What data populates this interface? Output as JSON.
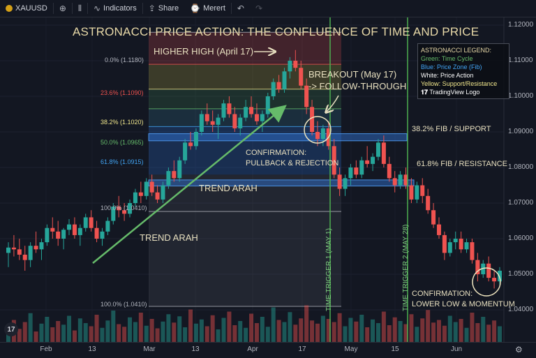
{
  "toolbar": {
    "symbol": "XAUUSD",
    "add_icon": "plus-circle-icon",
    "compare_icon": "candles-icon",
    "indicators_label": "Indicators",
    "share_label": "Share",
    "alert_label": "Merert",
    "undo_icon": "undo-icon",
    "redo_icon": "redo-icon"
  },
  "chart_data": {
    "type": "candlestick",
    "title": "ASTRONACCI PRICE ACTION: THE CONFLUENCE OF TIME AND PRICE",
    "y_ticks": [
      "1.12000",
      "1.11000",
      "1.10000",
      "1.09000",
      "1.08000",
      "1.07000",
      "1.06000",
      "1.05000",
      "1.04000"
    ],
    "ylim": [
      1.0355,
      1.1205
    ],
    "x_ticks": [
      "Feb",
      "13",
      "Mar",
      "13",
      "Apr",
      "17",
      "May",
      "15",
      "Jun"
    ],
    "fib_levels": [
      {
        "label": "0.0% (1.1180)",
        "value": 1.118,
        "color": "#b2b5be"
      },
      {
        "label": "23.6% (1.1090)",
        "value": 1.109,
        "color": "#ef5350"
      },
      {
        "label": "38.2% (1.1020)",
        "value": 1.102,
        "color": "#f0e68c"
      },
      {
        "label": "50.0% (1.0965)",
        "value": 1.0965,
        "color": "#66bb6a"
      },
      {
        "label": "61.8% (1.0915)",
        "value": 1.0915,
        "color": "#42a5f5"
      },
      {
        "label": "100.0% (1.0410)",
        "value": 1.041,
        "color": "#b2b5be"
      },
      {
        "label": "100.0% (1.0410)",
        "value": 1.041,
        "color": "#b2b5be"
      }
    ],
    "annotations": {
      "higher_high": "HIGHER HIGH (April 17)",
      "breakout_1": "BREAKOUT (May 17)",
      "breakout_2": "-> FOLLOW-THROUGH",
      "confirmation_1a": "CONFIRMATION:",
      "confirmation_1b": "PULLBACK & REJECTION",
      "fib_support": "38.2% FIB / SUPPORT",
      "fib_resistance": "61.8% FIB / RESISTANCE",
      "trend_1": "TREND ARAH",
      "trend_2": "TREND ARAH",
      "time_trigger_1": "TIME TRIGGER 1 (MAY 1)",
      "time_trigger_2": "TIME TRIGGER 2 (MAY 28)",
      "confirmation_2a": "CONFIRMATION:",
      "confirmation_2b": "LOWER LOW & MOMENTUM"
    },
    "legend": {
      "title": "ASTRONACCI LEGEND:",
      "green": "Green: Time Cycle",
      "blue": "Blue: Price Zone (Fib)",
      "white": "White: Price Action",
      "yellow": "Yellow: Support/Resistance",
      "logo": "TradingView Logo"
    },
    "colors": {
      "up": "#26a69a",
      "down": "#ef5350",
      "time": "#4caf50",
      "trend": "#66bb6a"
    },
    "candles": [
      [
        1.056,
        1.059,
        1.052,
        1.0575
      ],
      [
        1.0575,
        1.061,
        1.055,
        1.057
      ],
      [
        1.057,
        1.06,
        1.054,
        1.0555
      ],
      [
        1.0555,
        1.058,
        1.051,
        1.054
      ],
      [
        1.054,
        1.059,
        1.052,
        1.058
      ],
      [
        1.058,
        1.062,
        1.056,
        1.057
      ],
      [
        1.057,
        1.06,
        1.054,
        1.059
      ],
      [
        1.059,
        1.064,
        1.058,
        1.063
      ],
      [
        1.063,
        1.066,
        1.06,
        1.062
      ],
      [
        1.062,
        1.065,
        1.058,
        1.06
      ],
      [
        1.06,
        1.063,
        1.057,
        1.0625
      ],
      [
        1.0625,
        1.0655,
        1.061,
        1.064
      ],
      [
        1.064,
        1.066,
        1.06,
        1.061
      ],
      [
        1.061,
        1.064,
        1.058,
        1.063
      ],
      [
        1.063,
        1.067,
        1.062,
        1.066
      ],
      [
        1.066,
        1.068,
        1.062,
        1.063
      ],
      [
        1.063,
        1.065,
        1.059,
        1.06
      ],
      [
        1.06,
        1.063,
        1.058,
        1.062
      ],
      [
        1.062,
        1.066,
        1.061,
        1.065
      ],
      [
        1.065,
        1.07,
        1.064,
        1.069
      ],
      [
        1.069,
        1.072,
        1.066,
        1.068
      ],
      [
        1.068,
        1.07,
        1.065,
        1.067
      ],
      [
        1.067,
        1.071,
        1.066,
        1.07
      ],
      [
        1.07,
        1.074,
        1.069,
        1.073
      ],
      [
        1.073,
        1.076,
        1.07,
        1.072
      ],
      [
        1.072,
        1.077,
        1.071,
        1.076
      ],
      [
        1.076,
        1.078,
        1.072,
        1.073
      ],
      [
        1.073,
        1.075,
        1.07,
        1.071
      ],
      [
        1.071,
        1.076,
        1.07,
        1.075
      ],
      [
        1.075,
        1.08,
        1.074,
        1.079
      ],
      [
        1.079,
        1.082,
        1.076,
        1.077
      ],
      [
        1.077,
        1.083,
        1.076,
        1.082
      ],
      [
        1.082,
        1.088,
        1.081,
        1.087
      ],
      [
        1.087,
        1.09,
        1.085,
        1.086
      ],
      [
        1.086,
        1.091,
        1.085,
        1.09
      ],
      [
        1.09,
        1.096,
        1.089,
        1.095
      ],
      [
        1.095,
        1.098,
        1.092,
        1.093
      ],
      [
        1.093,
        1.096,
        1.09,
        1.092
      ],
      [
        1.092,
        1.095,
        1.088,
        1.094
      ],
      [
        1.094,
        1.099,
        1.093,
        1.098
      ],
      [
        1.098,
        1.1,
        1.094,
        1.095
      ],
      [
        1.095,
        1.097,
        1.09,
        1.091
      ],
      [
        1.091,
        1.095,
        1.089,
        1.094
      ],
      [
        1.094,
        1.099,
        1.093,
        1.097
      ],
      [
        1.097,
        1.1,
        1.094,
        1.095
      ],
      [
        1.095,
        1.098,
        1.092,
        1.093
      ],
      [
        1.093,
        1.096,
        1.09,
        1.095
      ],
      [
        1.095,
        1.101,
        1.094,
        1.1
      ],
      [
        1.1,
        1.105,
        1.099,
        1.104
      ],
      [
        1.104,
        1.106,
        1.101,
        1.102
      ],
      [
        1.102,
        1.108,
        1.101,
        1.107
      ],
      [
        1.107,
        1.111,
        1.105,
        1.11
      ],
      [
        1.11,
        1.113,
        1.107,
        1.108
      ],
      [
        1.108,
        1.11,
        1.102,
        1.103
      ],
      [
        1.103,
        1.105,
        1.095,
        1.097
      ],
      [
        1.097,
        1.099,
        1.089,
        1.09
      ],
      [
        1.09,
        1.093,
        1.086,
        1.088
      ],
      [
        1.088,
        1.092,
        1.086,
        1.091
      ],
      [
        1.091,
        1.093,
        1.085,
        1.086
      ],
      [
        1.086,
        1.088,
        1.077,
        1.078
      ],
      [
        1.078,
        1.08,
        1.072,
        1.074
      ],
      [
        1.074,
        1.078,
        1.072,
        1.077
      ],
      [
        1.077,
        1.081,
        1.075,
        1.08
      ],
      [
        1.08,
        1.082,
        1.077,
        1.078
      ],
      [
        1.078,
        1.083,
        1.077,
        1.082
      ],
      [
        1.082,
        1.086,
        1.08,
        1.081
      ],
      [
        1.081,
        1.084,
        1.079,
        1.083
      ],
      [
        1.083,
        1.088,
        1.082,
        1.087
      ],
      [
        1.087,
        1.089,
        1.08,
        1.081
      ],
      [
        1.081,
        1.083,
        1.076,
        1.077
      ],
      [
        1.077,
        1.079,
        1.073,
        1.075
      ],
      [
        1.075,
        1.079,
        1.074,
        1.078
      ],
      [
        1.078,
        1.08,
        1.074,
        1.075
      ],
      [
        1.075,
        1.077,
        1.07,
        1.071
      ],
      [
        1.071,
        1.076,
        1.07,
        1.075
      ],
      [
        1.075,
        1.077,
        1.07,
        1.072
      ],
      [
        1.072,
        1.074,
        1.067,
        1.068
      ],
      [
        1.068,
        1.07,
        1.063,
        1.064
      ],
      [
        1.064,
        1.066,
        1.06,
        1.061
      ],
      [
        1.061,
        1.062,
        1.054,
        1.056
      ],
      [
        1.056,
        1.06,
        1.055,
        1.059
      ],
      [
        1.059,
        1.062,
        1.057,
        1.06
      ],
      [
        1.06,
        1.062,
        1.056,
        1.057
      ],
      [
        1.057,
        1.06,
        1.056,
        1.059
      ],
      [
        1.059,
        1.06,
        1.053,
        1.054
      ],
      [
        1.054,
        1.056,
        1.048,
        1.05
      ],
      [
        1.05,
        1.054,
        1.049,
        1.053
      ],
      [
        1.053,
        1.055,
        1.048,
        1.049
      ],
      [
        1.049,
        1.051,
        1.046,
        1.048
      ],
      [
        1.048,
        1.052,
        1.047,
        1.051
      ]
    ],
    "volume": [
      30,
      42,
      25,
      38,
      55,
      20,
      35,
      48,
      28,
      40,
      33,
      50,
      22,
      45,
      36,
      30,
      52,
      27,
      41,
      60,
      34,
      29,
      47,
      38,
      56,
      31,
      44,
      26,
      39,
      53,
      37,
      49,
      28,
      62,
      35,
      43,
      30,
      51,
      24,
      46,
      58,
      32,
      40,
      27,
      54,
      36,
      48,
      29,
      66,
      42,
      38,
      57,
      33,
      45,
      70,
      41,
      35,
      50,
      44,
      38,
      55,
      30,
      46,
      39,
      52,
      28,
      43,
      36,
      58,
      32,
      47,
      40,
      34,
      53,
      29,
      45,
      61,
      37,
      42,
      31,
      50,
      38,
      44,
      27,
      56,
      36,
      48,
      33,
      41,
      30
    ]
  }
}
